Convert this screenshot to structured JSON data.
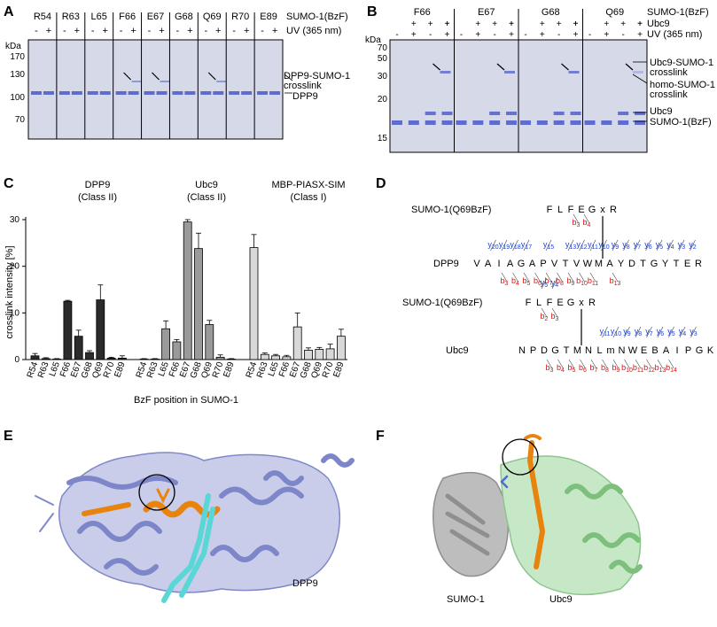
{
  "panels": {
    "A": {
      "letter": "A",
      "lanes": [
        "R54",
        "R63",
        "L65",
        "F66",
        "E67",
        "G68",
        "Q69",
        "R70",
        "E89"
      ],
      "row1_label": "SUMO-1(BzF)",
      "row2_label": "UV (365 nm)",
      "uv_signs": [
        "-",
        "+"
      ],
      "kda": "kDa",
      "markers": [
        "170",
        "130",
        "100",
        "70"
      ],
      "band_label_1": "DPP9-SUMO-1",
      "band_label_2": "crosslink",
      "band_label_3": "DPP9"
    },
    "B": {
      "letter": "B",
      "lanes": [
        "F66",
        "E67",
        "G68",
        "Q69"
      ],
      "row1_label": "SUMO-1(BzF)",
      "row2_label": "Ubc9",
      "row3_label": "UV (365 nm)",
      "kda": "kDa",
      "markers": [
        "70",
        "50",
        "30",
        "20",
        "15"
      ],
      "label_ubc9_sumo": "Ubc9-SUMO-1",
      "label_crosslink": "crosslink",
      "label_homo": "homo-SUMO-1",
      "label_crosslink2": "crosslink",
      "label_ubc9": "Ubc9",
      "label_sumo": "SUMO-1(BzF)"
    },
    "C": {
      "letter": "C",
      "group1_title": "DPP9",
      "group1_sub": "(Class II)",
      "group2_title": "Ubc9",
      "group2_sub": "(Class II)",
      "group3_title": "MBP-PIASX-SIM",
      "group3_sub": "(Class I)",
      "y_label": "crosslink intensity [%]",
      "x_label": "BzF position in SUMO-1"
    },
    "D": {
      "letter": "D",
      "sumo_label_1": "SUMO-1(Q69BzF)",
      "sumo_seq_1": "FLFEGxR",
      "sumo_b_1": [
        "b3",
        "b4"
      ],
      "dpp9_label": "DPP9",
      "dpp9_seq": "VAIAGAPVTVWMAYDTGYTER",
      "dpp9_y": [
        "y20",
        "y19",
        "y18",
        "y17",
        "y15",
        "y13",
        "y12",
        "y11",
        "y10",
        "y9",
        "y8",
        "y7",
        "y6",
        "y5",
        "y4",
        "y3",
        "y2"
      ],
      "dpp9_b": [
        "b3",
        "b4",
        "b5",
        "b6",
        "b7",
        "b8",
        "b9",
        "b10",
        "b11",
        "b13"
      ],
      "sumo_label_2": "SUMO-1(Q69BzF)",
      "sumo_seq_2": "FLFEGxR",
      "sumo_y_2": [
        "y5",
        "y4"
      ],
      "sumo_b_2": [
        "b2",
        "b3"
      ],
      "ubc9_label": "Ubc9",
      "ubc9_seq": "NPDGTMNLmNWEBAIPGK",
      "ubc9_y": [
        "y11",
        "y10",
        "y9",
        "y8",
        "y7",
        "y6",
        "y5",
        "y4",
        "y3"
      ],
      "ubc9_b": [
        "b3",
        "b4",
        "b5",
        "b6",
        "b7",
        "b8",
        "b9",
        "b10",
        "b11",
        "b12",
        "b13",
        "b14"
      ]
    },
    "E": {
      "letter": "E",
      "label": "DPP9"
    },
    "F": {
      "letter": "F",
      "label_sumo": "SUMO-1",
      "label_ubc9": "Ubc9"
    }
  },
  "colors": {
    "gel_bg": "#d6d9e8",
    "band": "#4a58c8",
    "dpp9_bar": "#2b2b2b",
    "ubc9_bar": "#9a9a9a",
    "mbp_bar": "#d8d8d8",
    "y_ion": "#1a3fd0",
    "b_ion": "#e01010",
    "dpp9_struct": "#9fa6d8",
    "orange": "#e8830d",
    "cyan": "#5ad6d6",
    "sumo_struct": "#8f8f8f",
    "ubc9_struct": "#9fd49f"
  },
  "chart_data": {
    "type": "bar",
    "ylabel": "crosslink intensity [%]",
    "xlabel": "BzF position in SUMO-1",
    "ylim": [
      0,
      30
    ],
    "yticks": [
      0,
      10,
      20,
      30
    ],
    "categories": [
      "R54",
      "R63",
      "L65",
      "F66",
      "E67",
      "G68",
      "Q69",
      "R70",
      "E89"
    ],
    "series": [
      {
        "name": "DPP9 (Class II)",
        "values": [
          0.8,
          0.2,
          0.1,
          12.5,
          5.0,
          1.5,
          12.8,
          0.3,
          0.3
        ],
        "errors": [
          0.5,
          0.2,
          0.1,
          0.2,
          1.3,
          0.4,
          3.2,
          0.2,
          0.5
        ]
      },
      {
        "name": "Ubc9 (Class II)",
        "values": [
          0.1,
          0.1,
          6.6,
          3.8,
          29.5,
          23.8,
          7.5,
          0.5,
          0.1
        ],
        "errors": [
          0.1,
          0.1,
          1.7,
          0.5,
          0.5,
          3.3,
          0.9,
          0.5,
          0.1
        ]
      },
      {
        "name": "MBP-PIASX-SIM (Class I)",
        "values": [
          24.0,
          1.1,
          0.8,
          0.6,
          7.0,
          2.0,
          2.2,
          2.3,
          5.0
        ],
        "errors": [
          2.8,
          0.3,
          0.3,
          0.3,
          3.0,
          0.5,
          0.4,
          1.0,
          1.5
        ]
      }
    ]
  }
}
